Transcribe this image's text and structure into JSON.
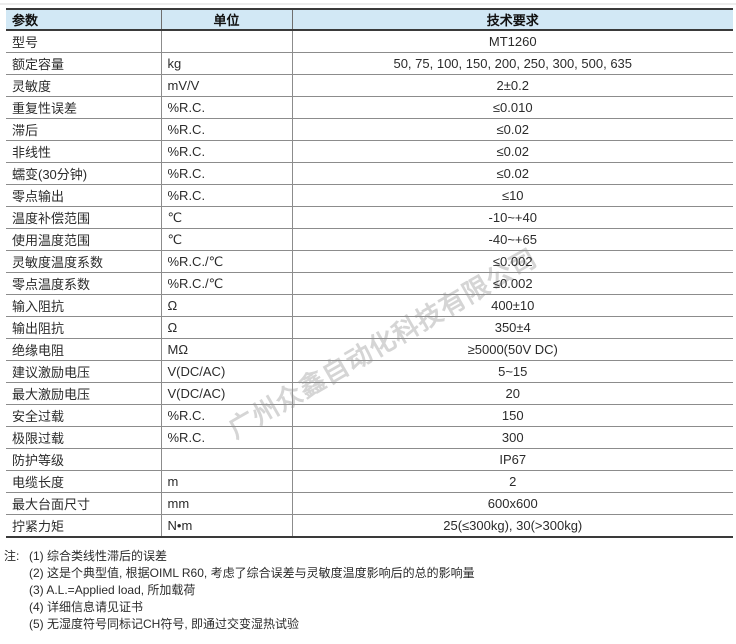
{
  "watermark": {
    "text": "广州众鑫自动化科技有限公司"
  },
  "table": {
    "headers": [
      "参数",
      "单位",
      "技术要求"
    ],
    "rows": [
      {
        "param": "型号",
        "unit": "",
        "value": "MT1260"
      },
      {
        "param": "额定容量",
        "unit": "kg",
        "value": "50, 75, 100, 150, 200, 250, 300, 500, 635"
      },
      {
        "param": "灵敏度",
        "unit": "mV/V",
        "value": "2±0.2"
      },
      {
        "param": "重复性误差",
        "unit": "%R.C.",
        "value": "≤0.010"
      },
      {
        "param": "滞后",
        "unit": "%R.C.",
        "value": "≤0.02"
      },
      {
        "param": "非线性",
        "unit": "%R.C.",
        "value": "≤0.02"
      },
      {
        "param": "蠕变(30分钟)",
        "unit": "%R.C.",
        "value": "≤0.02"
      },
      {
        "param": "零点输出",
        "unit": "%R.C.",
        "value": "≤10"
      },
      {
        "param": "温度补偿范围",
        "unit": "℃",
        "value": "-10~+40"
      },
      {
        "param": "使用温度范围",
        "unit": "℃",
        "value": "-40~+65"
      },
      {
        "param": "灵敏度温度系数",
        "unit": "%R.C./℃",
        "value": "≤0.002"
      },
      {
        "param": "零点温度系数",
        "unit": "%R.C./℃",
        "value": "≤0.002"
      },
      {
        "param": "输入阻抗",
        "unit": "Ω",
        "value": "400±10"
      },
      {
        "param": "输出阻抗",
        "unit": "Ω",
        "value": "350±4"
      },
      {
        "param": "绝缘电阻",
        "unit": "MΩ",
        "value": "≥5000(50V DC)"
      },
      {
        "param": "建议激励电压",
        "unit": "V(DC/AC)",
        "value": "5~15"
      },
      {
        "param": "最大激励电压",
        "unit": "V(DC/AC)",
        "value": "20"
      },
      {
        "param": "安全过载",
        "unit": "%R.C.",
        "value": "150"
      },
      {
        "param": "极限过载",
        "unit": "%R.C.",
        "value": "300"
      },
      {
        "param": "防护等级",
        "unit": "",
        "value": "IP67"
      },
      {
        "param": "电缆长度",
        "unit": "m",
        "value": "2"
      },
      {
        "param": "最大台面尺寸",
        "unit": "mm",
        "value": "600x600"
      },
      {
        "param": "拧紧力矩",
        "unit": "N•m",
        "value": "25(≤300kg), 30(>300kg)"
      }
    ]
  },
  "notes": {
    "lead": "注:",
    "items": [
      "(1) 综合类线性滞后的误差",
      "(2) 这是个典型值, 根据OIML R60, 考虑了综合误差与灵敏度温度影响后的总的影响量",
      "(3) A.L.=Applied load, 所加载荷",
      "(4) 详细信息请见证书",
      "(5) 无湿度符号同标记CH符号, 即通过交变湿热试验"
    ]
  },
  "colors": {
    "header_bg": "#d2e8f5",
    "border_dark": "#3a3a3a",
    "border_light": "#8c8c8c",
    "watermark_gray": "#919191"
  }
}
